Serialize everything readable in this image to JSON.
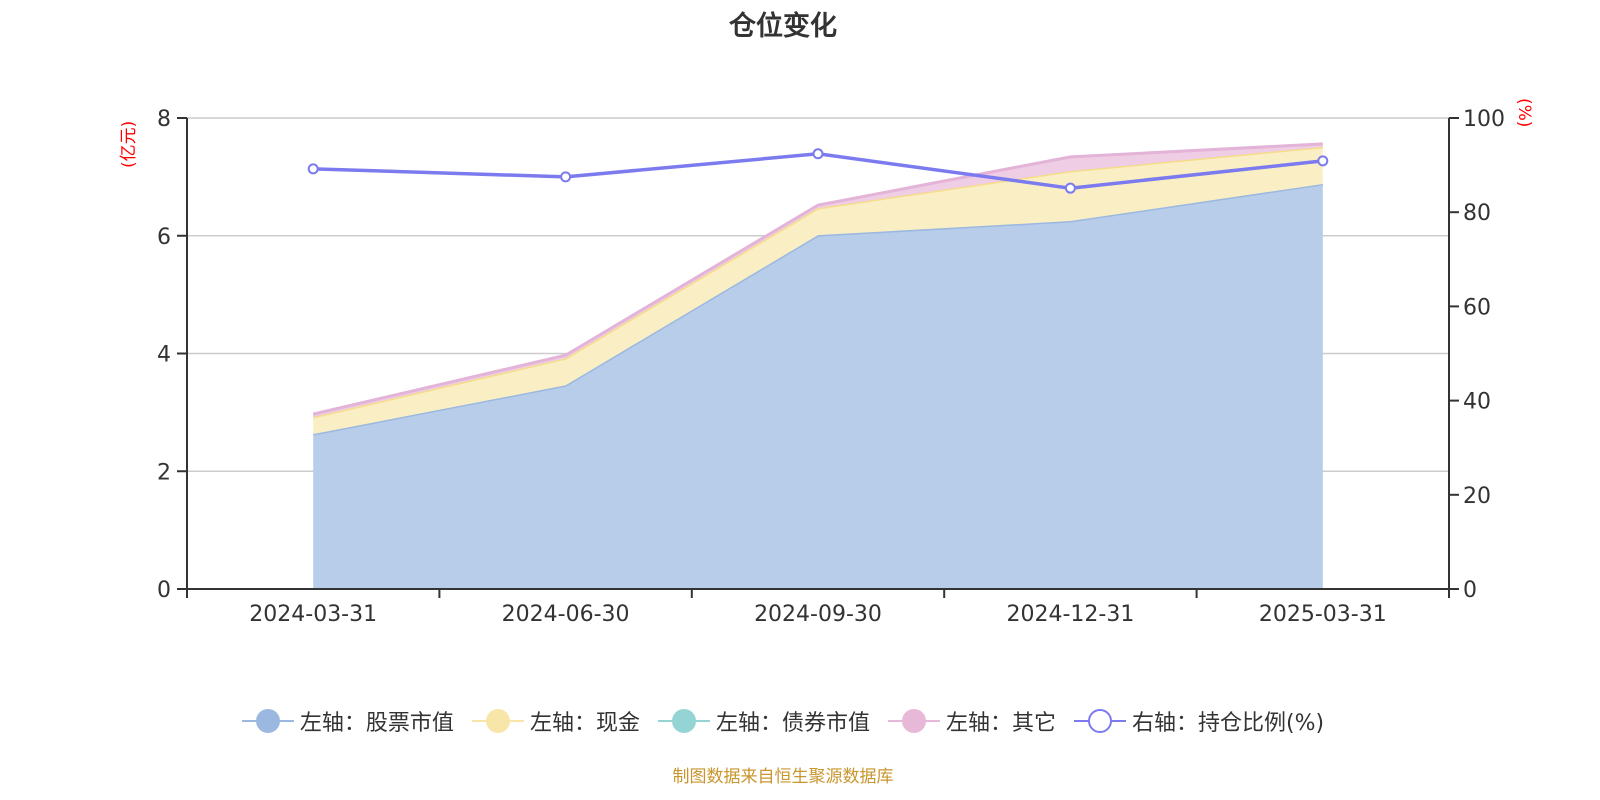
{
  "title": "仓位变化",
  "axes": {
    "left_unit": "(亿元)",
    "right_unit": "(%)",
    "left_ticks": [
      "0",
      "2",
      "4",
      "6",
      "8"
    ],
    "right_ticks": [
      "0",
      "20",
      "40",
      "60",
      "80",
      "100"
    ]
  },
  "legend": [
    {
      "label": "左轴：股票市值",
      "color": "#9bb8e0",
      "type": "filled"
    },
    {
      "label": "左轴：现金",
      "color": "#f8e6a8",
      "type": "filled"
    },
    {
      "label": "左轴：债券市值",
      "color": "#94d4d4",
      "type": "filled"
    },
    {
      "label": "左轴：其它",
      "color": "#e8b8d8",
      "type": "filled"
    },
    {
      "label": "右轴：持仓比例(%)",
      "color": "#7b7bef",
      "type": "hollow"
    }
  ],
  "source": "制图数据来自恒生聚源数据库",
  "chart_data": {
    "type": "area",
    "title": "仓位变化",
    "categories": [
      "2024-03-31",
      "2024-06-30",
      "2024-09-30",
      "2024-12-31",
      "2025-03-31"
    ],
    "stacked": true,
    "series": [
      {
        "name": "左轴：股票市值",
        "axis": "left",
        "type": "area",
        "color": "#9bb8e0",
        "values": [
          2.63,
          3.46,
          6.01,
          6.25,
          6.88
        ]
      },
      {
        "name": "左轴：现金",
        "axis": "left",
        "type": "area",
        "color": "#f8e6a8",
        "values": [
          0.29,
          0.46,
          0.46,
          0.85,
          0.63
        ]
      },
      {
        "name": "左轴：债券市值",
        "axis": "left",
        "type": "area",
        "color": "#94d4d4",
        "values": [
          0,
          0,
          0,
          0,
          0
        ]
      },
      {
        "name": "左轴：其它",
        "axis": "left",
        "type": "area",
        "color": "#e8b8d8",
        "values": [
          0.05,
          0.05,
          0.05,
          0.24,
          0.05
        ]
      },
      {
        "name": "右轴：持仓比例(%)",
        "axis": "right",
        "type": "line",
        "color": "#7b7bef",
        "values": [
          89.2,
          87.5,
          92.4,
          85.1,
          90.9
        ]
      }
    ],
    "ylabel_left": "(亿元)",
    "ylabel_right": "(%)",
    "ylim_left": [
      0,
      8
    ],
    "ylim_right": [
      0,
      100
    ],
    "grid": true,
    "legend_position": "bottom"
  }
}
